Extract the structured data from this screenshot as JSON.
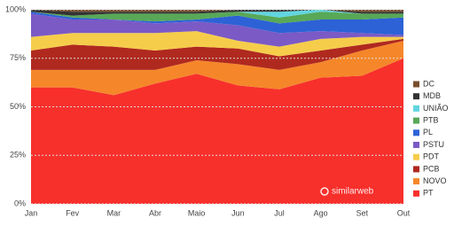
{
  "chart_data": {
    "type": "stacked-area",
    "categories": [
      "Jan",
      "Fev",
      "Mar",
      "Abr",
      "Maio",
      "Jun",
      "Jul",
      "Ago",
      "Set",
      "Out"
    ],
    "ylim": [
      0,
      100
    ],
    "yticks": [
      {
        "value": 0,
        "label": "0%"
      },
      {
        "value": 25,
        "label": "25%"
      },
      {
        "value": 50,
        "label": "50%"
      },
      {
        "value": 75,
        "label": "75%"
      },
      {
        "value": 100,
        "label": "100%"
      }
    ],
    "grid": true,
    "legend": "right",
    "watermark": "similarweb",
    "series": [
      {
        "name": "PT",
        "color": "#f7302c",
        "values": [
          60,
          60,
          56,
          62,
          67,
          61,
          59,
          65,
          66,
          75
        ]
      },
      {
        "name": "NOVO",
        "color": "#f5872a",
        "values": [
          9,
          9,
          13,
          7,
          7,
          11,
          10,
          8,
          13,
          9
        ]
      },
      {
        "name": "PCB",
        "color": "#b0291f",
        "values": [
          10,
          13,
          12,
          10,
          7,
          8,
          7,
          6,
          3,
          1
        ]
      },
      {
        "name": "PDT",
        "color": "#f5cd4b",
        "values": [
          7,
          6,
          7,
          9,
          8,
          4,
          5,
          6,
          4,
          1
        ]
      },
      {
        "name": "PSTU",
        "color": "#7b5ac6",
        "values": [
          12,
          7,
          7,
          5,
          5,
          8,
          7,
          4,
          2,
          1
        ]
      },
      {
        "name": "PL",
        "color": "#2c62d6",
        "values": [
          1,
          1,
          0,
          1,
          1,
          5,
          5,
          6,
          7,
          9
        ]
      },
      {
        "name": "PTB",
        "color": "#58a858",
        "values": [
          0,
          1,
          3,
          4,
          3,
          2,
          3,
          4,
          3,
          2
        ]
      },
      {
        "name": "UNIÃO",
        "color": "#62d5df",
        "values": [
          0,
          0,
          0,
          0,
          0,
          0,
          3,
          1,
          0,
          0
        ]
      },
      {
        "name": "MDB",
        "color": "#333333",
        "values": [
          1,
          2,
          1,
          1,
          1,
          1,
          1,
          0,
          1,
          1
        ]
      },
      {
        "name": "DC",
        "color": "#7a4f2e",
        "values": [
          0,
          1,
          1,
          1,
          1,
          0,
          0,
          0,
          1,
          1
        ]
      }
    ]
  }
}
